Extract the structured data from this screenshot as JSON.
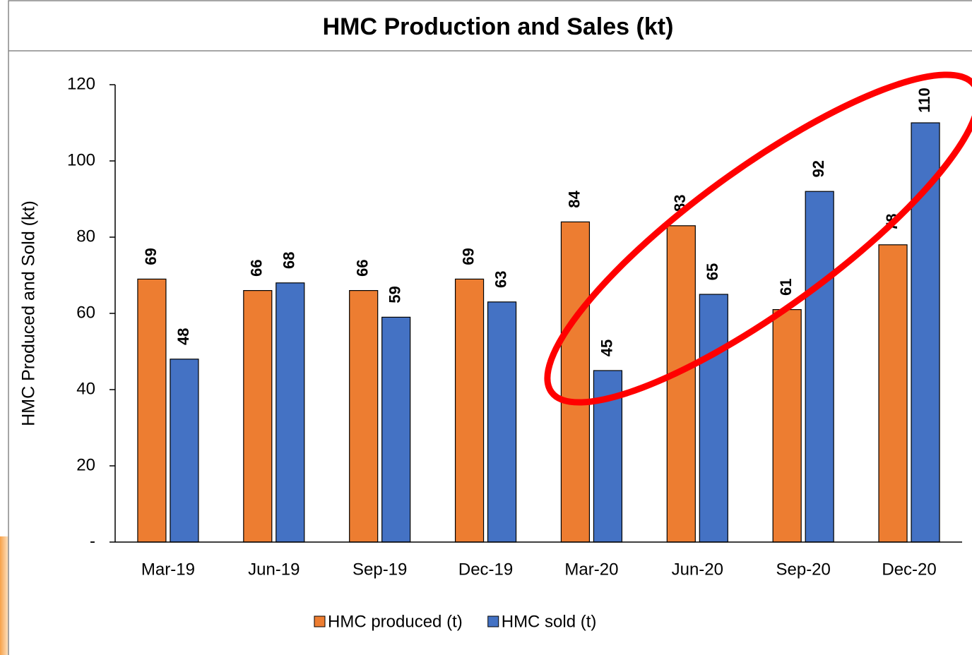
{
  "chart_data": {
    "type": "bar",
    "title": "HMC Production and Sales (kt)",
    "ylabel": "HMC Produced and Sold (kt)",
    "categories": [
      "Mar-19",
      "Jun-19",
      "Sep-19",
      "Dec-19",
      "Mar-20",
      "Jun-20",
      "Sep-20",
      "Dec-20"
    ],
    "series": [
      {
        "name": "HMC produced (t)",
        "color": "#ed7d31",
        "values": [
          69,
          66,
          66,
          69,
          84,
          83,
          61,
          78
        ]
      },
      {
        "name": "HMC sold (t)",
        "color": "#4472c4",
        "values": [
          48,
          68,
          59,
          63,
          45,
          65,
          92,
          110
        ]
      }
    ],
    "ylim": [
      0,
      120
    ],
    "yticks": [
      {
        "value": 0,
        "label": "-"
      },
      20,
      40,
      60,
      80,
      100,
      120
    ],
    "legend": "bottom"
  }
}
